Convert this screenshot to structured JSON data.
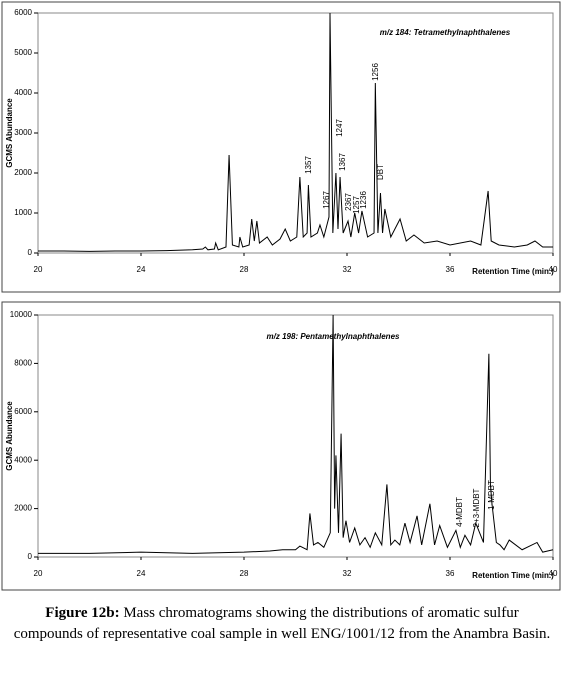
{
  "chart_data": [
    {
      "type": "line",
      "title": "m/z 184: Tetramethylnaphthalenes",
      "y_label": "GCMS Abundance",
      "x_label": "Retention Time (min.)",
      "xlim": [
        20,
        40
      ],
      "xticks": [
        20,
        24,
        28,
        32,
        36,
        40
      ],
      "ylim": [
        0,
        6000
      ],
      "yticks": [
        0,
        1000,
        2000,
        3000,
        4000,
        5000,
        6000
      ],
      "annotations": [
        "1357",
        "1267",
        "1247",
        "1367",
        "2367",
        "1257",
        "1236",
        "1256",
        "DBT"
      ],
      "x": [
        20,
        21,
        22,
        23,
        24,
        25,
        26,
        26.4,
        26.5,
        26.6,
        26.85,
        26.9,
        27.0,
        27.3,
        27.42,
        27.55,
        27.8,
        27.84,
        27.95,
        28.2,
        28.3,
        28.4,
        28.5,
        28.6,
        28.9,
        29.1,
        29.4,
        29.6,
        29.8,
        30.05,
        30.17,
        30.3,
        30.45,
        30.5,
        30.6,
        30.85,
        30.95,
        31.1,
        31.3,
        31.34,
        31.45,
        31.57,
        31.65,
        31.73,
        31.85,
        32.04,
        32.15,
        32.3,
        32.45,
        32.58,
        32.8,
        33.05,
        33.1,
        33.2,
        33.3,
        33.38,
        33.47,
        33.7,
        34.06,
        34.3,
        34.6,
        35,
        35.5,
        36,
        36.8,
        37.2,
        37.48,
        37.6,
        37.9,
        38.5,
        39,
        39.3,
        39.6,
        40
      ],
      "series": [
        {
          "color": "#000000",
          "values": [
            50,
            50,
            40,
            50,
            50,
            60,
            80,
            100,
            150,
            80,
            100,
            250,
            80,
            150,
            2450,
            200,
            150,
            400,
            150,
            200,
            850,
            300,
            800,
            250,
            400,
            200,
            350,
            600,
            300,
            400,
            1900,
            400,
            500,
            1700,
            400,
            500,
            700,
            400,
            900,
            6000,
            500,
            2000,
            600,
            1900,
            500,
            800,
            400,
            1000,
            500,
            1050,
            400,
            500,
            4250,
            500,
            1500,
            500,
            1100,
            400,
            850,
            300,
            450,
            250,
            300,
            200,
            300,
            200,
            1550,
            300,
            200,
            150,
            200,
            300,
            150,
            150
          ]
        }
      ]
    },
    {
      "type": "line",
      "title": "m/z 198: Pentamethylnaphthalenes",
      "y_label": "GCMS Abundance",
      "x_label": "Retention Time (min.)",
      "xlim": [
        20,
        40
      ],
      "xticks": [
        20,
        24,
        28,
        32,
        36,
        40
      ],
      "ylim": [
        0,
        10000
      ],
      "yticks": [
        0,
        2000,
        4000,
        6000,
        8000,
        10000
      ],
      "annotations": [
        "4-MDBT",
        "2+3-MDBT",
        "1-MDBT"
      ],
      "x": [
        20,
        22,
        24,
        26,
        28,
        29,
        29.5,
        30,
        30.17,
        30.45,
        30.56,
        30.7,
        30.87,
        31.1,
        31.35,
        31.46,
        31.52,
        31.57,
        31.67,
        31.77,
        31.85,
        31.96,
        32.1,
        32.3,
        32.5,
        32.7,
        32.9,
        33.1,
        33.35,
        33.55,
        33.7,
        33.86,
        34.05,
        34.25,
        34.45,
        34.72,
        34.9,
        35.22,
        35.4,
        35.6,
        35.9,
        36.23,
        36.4,
        36.58,
        36.8,
        37,
        37.3,
        37.51,
        37.57,
        37.63,
        37.8,
        37.94,
        38.1,
        38.3,
        38.8,
        39.38,
        39.6,
        40
      ],
      "series": [
        {
          "color": "#000000",
          "values": [
            150,
            150,
            200,
            150,
            200,
            250,
            300,
            300,
            450,
            300,
            1800,
            500,
            600,
            400,
            1000,
            10000,
            2000,
            4200,
            1000,
            5100,
            800,
            1500,
            600,
            1200,
            500,
            800,
            400,
            1000,
            500,
            3000,
            500,
            700,
            500,
            1400,
            600,
            1700,
            500,
            2200,
            500,
            1300,
            400,
            1100,
            400,
            900,
            500,
            1400,
            600,
            8400,
            3000,
            2200,
            600,
            500,
            300,
            700,
            300,
            600,
            200,
            300
          ]
        }
      ]
    }
  ],
  "caption": {
    "label": "Figure 12b:",
    "text": "Mass chromatograms showing the distributions of aromatic sulfur compounds of representative coal sample in well ENG/1001/12 from the Anambra Basin."
  }
}
